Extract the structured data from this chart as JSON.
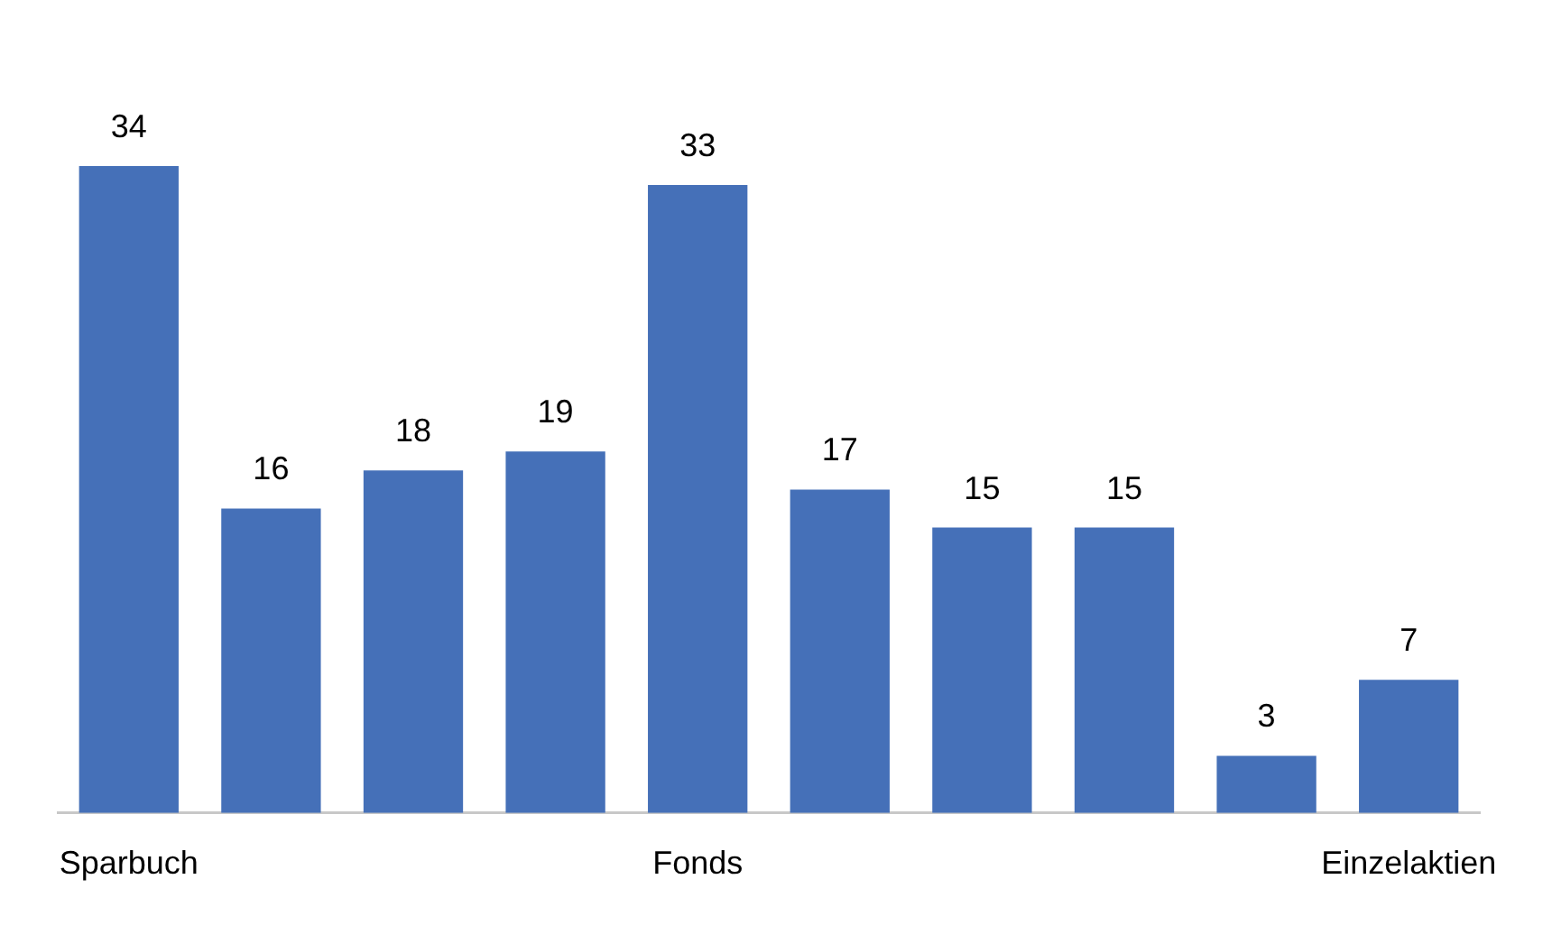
{
  "chart_data": {
    "type": "bar",
    "categories": [
      "Sparbuch",
      null,
      null,
      null,
      "Fonds",
      null,
      null,
      null,
      null,
      "Einzelaktien"
    ],
    "values": [
      34,
      16,
      18,
      19,
      33,
      17,
      15,
      15,
      3,
      7
    ],
    "color": "#4570b8",
    "data_labels": true,
    "grid": false,
    "legend": false
  }
}
